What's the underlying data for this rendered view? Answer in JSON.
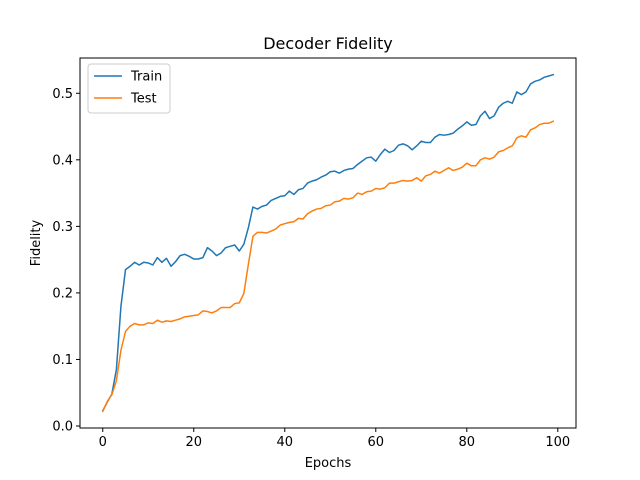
{
  "chart_data": {
    "type": "line",
    "title": "Decoder Fidelity",
    "xlabel": "Epochs",
    "ylabel": "Fidelity",
    "xlim": [
      -5,
      104
    ],
    "ylim": [
      -0.003,
      0.553
    ],
    "xticks": [
      0,
      20,
      40,
      60,
      80,
      100
    ],
    "yticks": [
      0.0,
      0.1,
      0.2,
      0.3,
      0.4,
      0.5
    ],
    "ytick_labels": [
      "0.0",
      "0.1",
      "0.2",
      "0.3",
      "0.4",
      "0.5"
    ],
    "grid": false,
    "legend_position": "top-left",
    "series": [
      {
        "name": "Train",
        "color": "#1f77b4",
        "values": [
          0.023,
          0.036,
          0.048,
          0.085,
          0.18,
          0.235,
          0.24,
          0.246,
          0.242,
          0.246,
          0.245,
          0.242,
          0.253,
          0.246,
          0.252,
          0.24,
          0.247,
          0.256,
          0.258,
          0.255,
          0.251,
          0.251,
          0.253,
          0.268,
          0.263,
          0.256,
          0.26,
          0.268,
          0.27,
          0.272,
          0.263,
          0.273,
          0.298,
          0.329,
          0.326,
          0.33,
          0.332,
          0.339,
          0.342,
          0.345,
          0.346,
          0.353,
          0.348,
          0.355,
          0.357,
          0.365,
          0.368,
          0.37,
          0.374,
          0.377,
          0.382,
          0.383,
          0.38,
          0.384,
          0.386,
          0.387,
          0.393,
          0.398,
          0.403,
          0.404,
          0.398,
          0.408,
          0.416,
          0.411,
          0.414,
          0.422,
          0.424,
          0.421,
          0.415,
          0.421,
          0.428,
          0.426,
          0.426,
          0.434,
          0.438,
          0.437,
          0.438,
          0.44,
          0.446,
          0.451,
          0.457,
          0.452,
          0.453,
          0.466,
          0.473,
          0.462,
          0.466,
          0.479,
          0.485,
          0.488,
          0.485,
          0.502,
          0.498,
          0.502,
          0.514,
          0.518,
          0.52,
          0.524,
          0.526,
          0.528
        ]
      },
      {
        "name": "Test",
        "color": "#ff7f0e",
        "values": [
          0.022,
          0.037,
          0.047,
          0.068,
          0.114,
          0.142,
          0.15,
          0.154,
          0.152,
          0.152,
          0.155,
          0.154,
          0.159,
          0.156,
          0.158,
          0.157,
          0.159,
          0.161,
          0.164,
          0.165,
          0.166,
          0.167,
          0.173,
          0.172,
          0.17,
          0.173,
          0.178,
          0.178,
          0.178,
          0.184,
          0.185,
          0.199,
          0.243,
          0.285,
          0.291,
          0.291,
          0.29,
          0.293,
          0.296,
          0.302,
          0.304,
          0.306,
          0.307,
          0.312,
          0.311,
          0.319,
          0.323,
          0.326,
          0.327,
          0.331,
          0.332,
          0.337,
          0.338,
          0.342,
          0.341,
          0.343,
          0.35,
          0.348,
          0.352,
          0.353,
          0.357,
          0.356,
          0.358,
          0.365,
          0.365,
          0.367,
          0.369,
          0.368,
          0.369,
          0.373,
          0.368,
          0.376,
          0.378,
          0.383,
          0.38,
          0.384,
          0.388,
          0.384,
          0.386,
          0.389,
          0.395,
          0.391,
          0.391,
          0.4,
          0.403,
          0.401,
          0.404,
          0.412,
          0.414,
          0.418,
          0.421,
          0.433,
          0.436,
          0.434,
          0.445,
          0.448,
          0.453,
          0.455,
          0.455,
          0.458
        ]
      }
    ]
  }
}
